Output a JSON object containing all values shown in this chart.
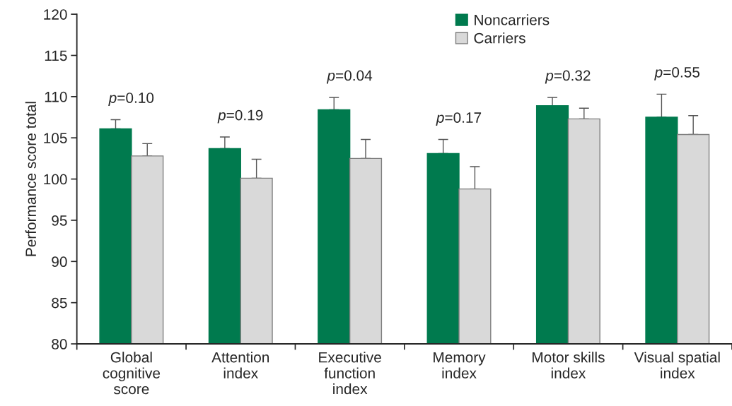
{
  "chart_data": {
    "type": "bar",
    "ylabel": "Performance score total",
    "categories": [
      "Global\ncognitive\nscore",
      "Attention\nindex",
      "Executive\nfunction\nindex",
      "Memory\nindex",
      "Motor skills\nindex",
      "Visual spatial\nindex"
    ],
    "series": [
      {
        "name": "Noncarriers",
        "color": "#007a4e",
        "values": [
          106.1,
          103.7,
          108.4,
          103.1,
          108.9,
          107.5
        ],
        "errors": [
          [
            106.1,
            107.2
          ],
          [
            103.7,
            105.1
          ],
          [
            108.4,
            109.9
          ],
          [
            103.1,
            104.8
          ],
          [
            108.9,
            109.9
          ],
          [
            107.5,
            110.3
          ]
        ]
      },
      {
        "name": "Carriers",
        "color": "#d9d9d9",
        "values": [
          102.8,
          100.1,
          102.5,
          98.8,
          107.3,
          105.4
        ],
        "errors": [
          [
            102.8,
            104.3
          ],
          [
            100.1,
            102.4
          ],
          [
            102.5,
            104.8
          ],
          [
            98.8,
            101.5
          ],
          [
            107.3,
            108.6
          ],
          [
            105.4,
            107.7
          ]
        ]
      }
    ],
    "ylim": [
      80,
      120
    ],
    "yticks": [
      80,
      85,
      90,
      95,
      100,
      105,
      110,
      115,
      120
    ],
    "annotations": [
      "p=0.10",
      "p=0.19",
      "p=0.04",
      "p=0.17",
      "p=0.32",
      "p=0.55"
    ],
    "legend": "top",
    "grid": false
  }
}
